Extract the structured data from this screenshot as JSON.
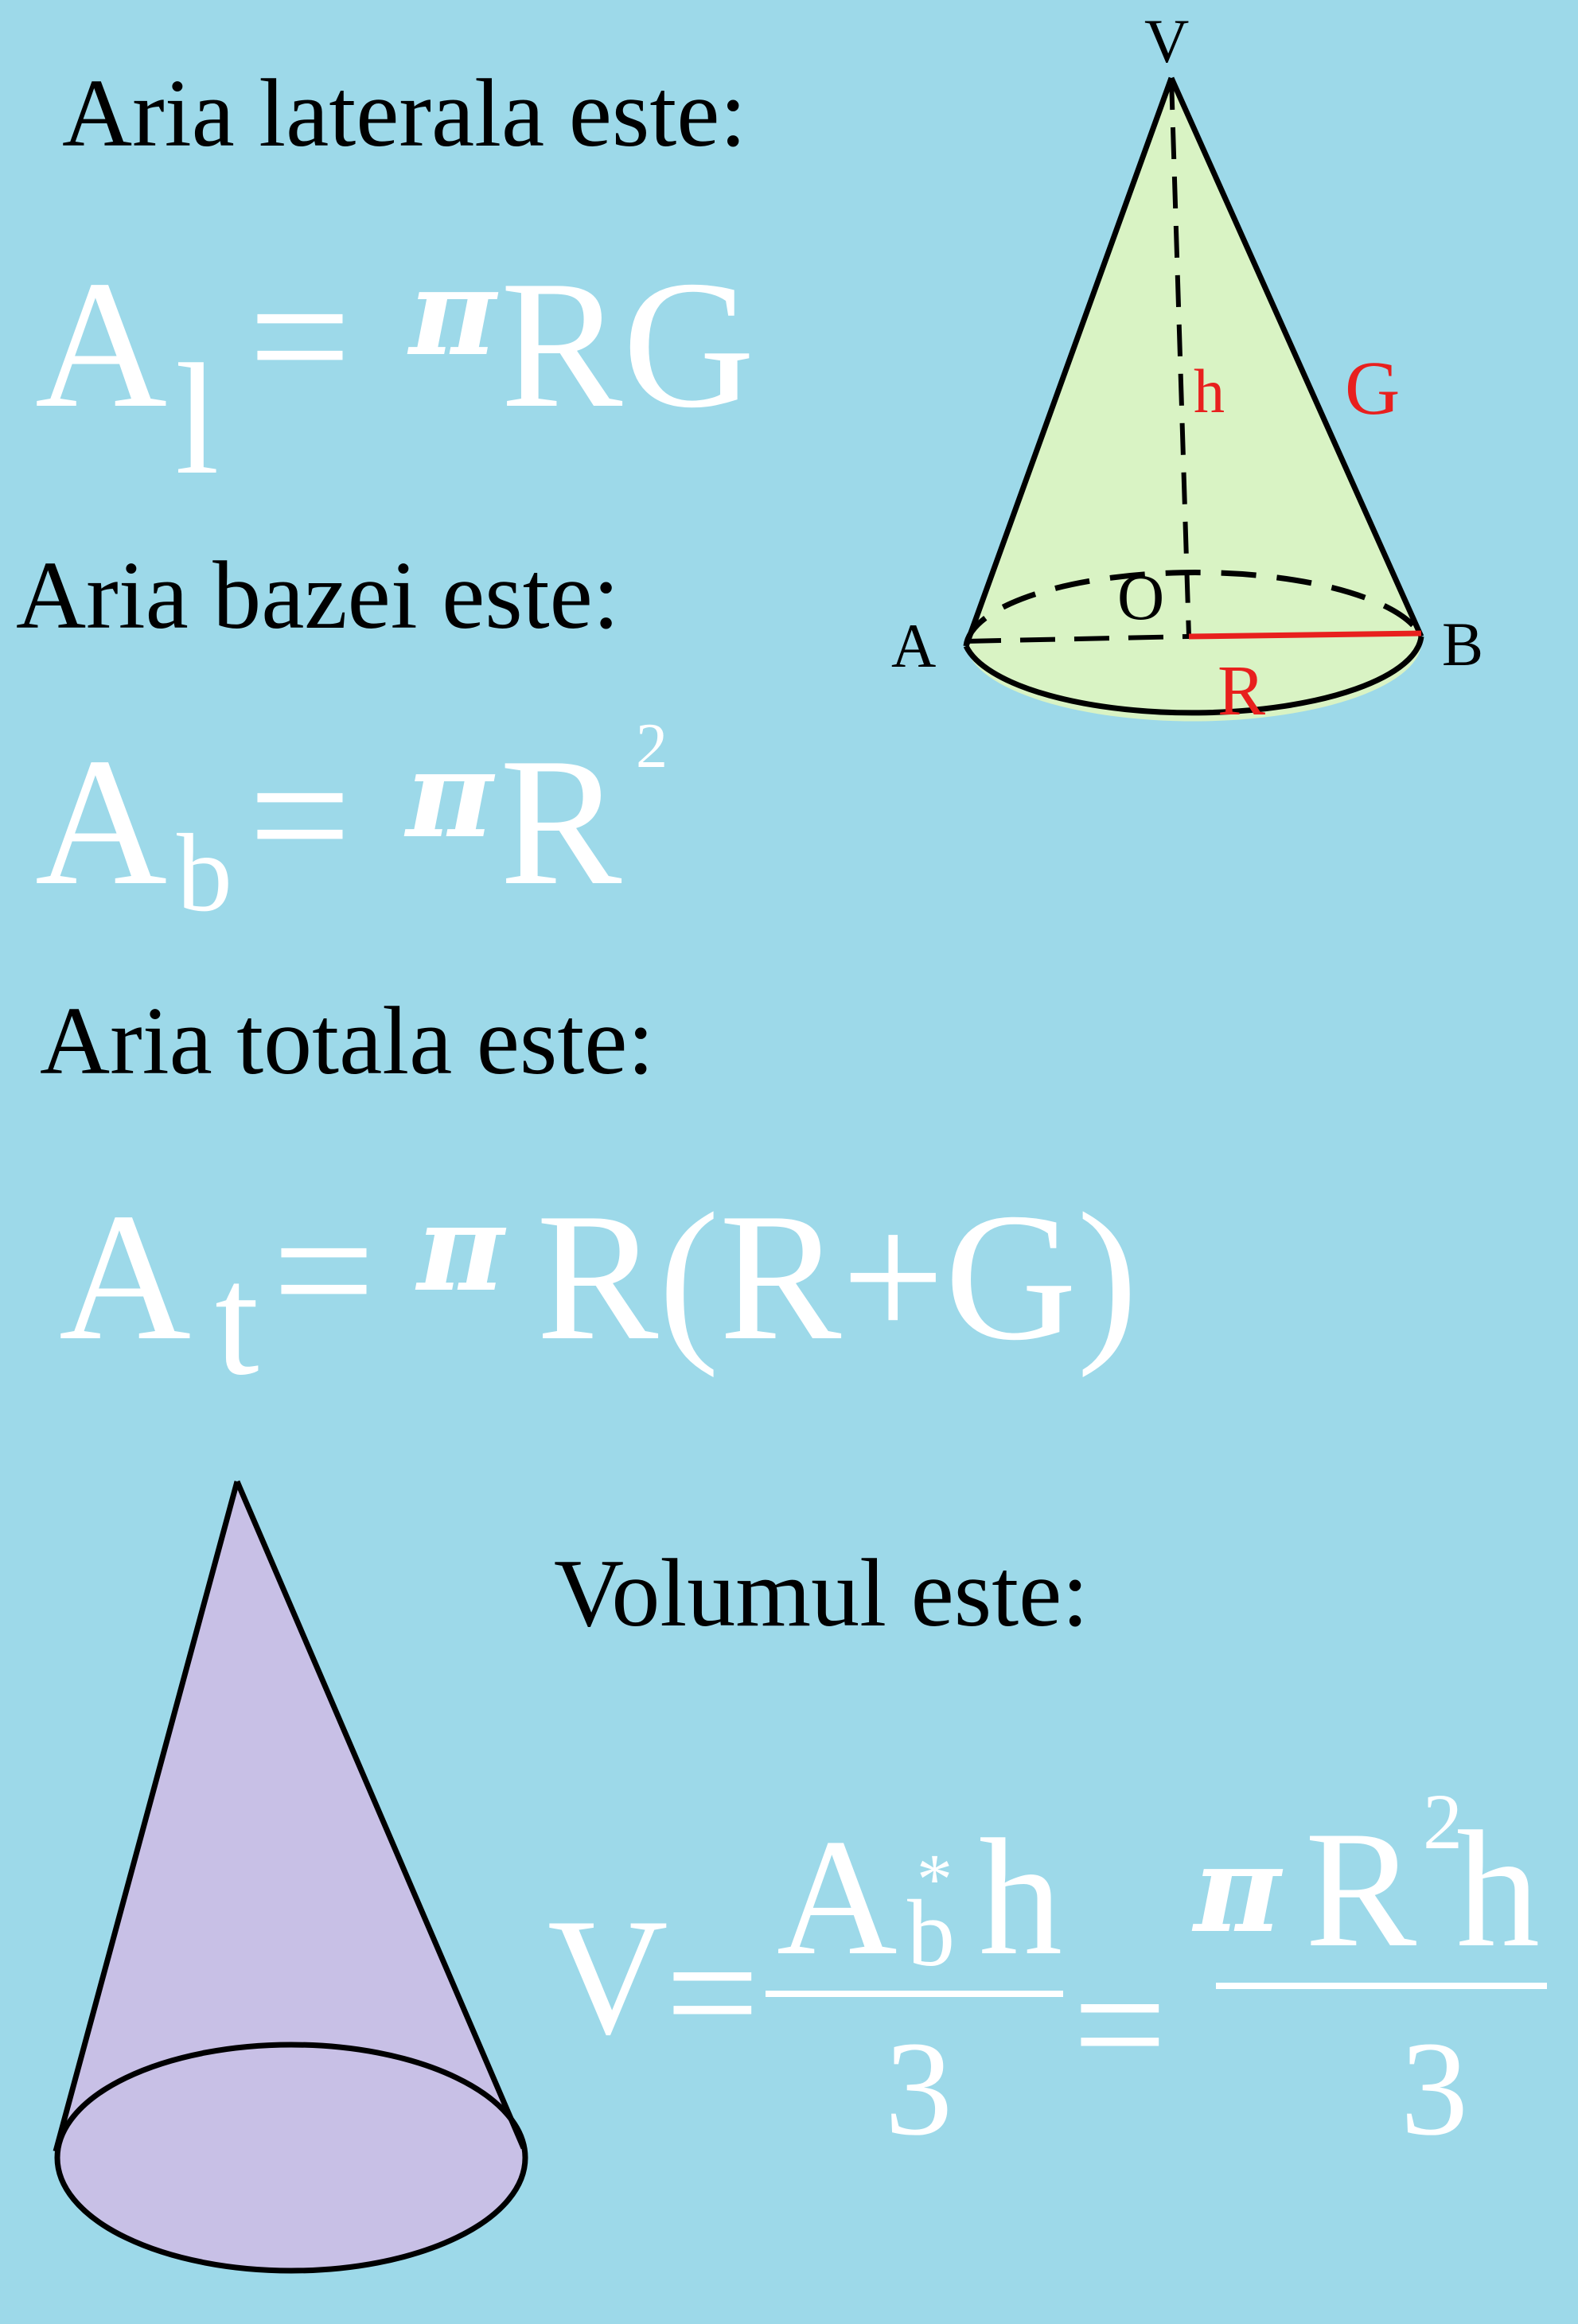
{
  "headings": {
    "lateral": "Aria laterala este:",
    "base": "Aria bazei este:",
    "total": "Aria totala este:",
    "volume": "Volumul este:"
  },
  "formulas": {
    "lateral": {
      "lhs": "A",
      "sub": "l",
      "eq": "=",
      "pi": "π",
      "rhs": "RG"
    },
    "base": {
      "lhs": "A",
      "sub": "b",
      "eq": "=",
      "pi": "π",
      "rhs": "R",
      "sup": "2"
    },
    "total": {
      "lhs": "A",
      "sub": "t",
      "eq": "=",
      "pi": "π",
      "rhs": "R(R+G)"
    },
    "volume": {
      "lhs": "V",
      "eq1": "=",
      "num1_a": "A",
      "num1_sub": "b",
      "num1_star": "*",
      "num1_h": "h",
      "den1": "3",
      "eq2": "=",
      "num2_pi": "π",
      "num2_r": "R",
      "num2_sup": "2",
      "num2_h": "h",
      "den2": "3"
    }
  },
  "cone_labels": {
    "apex": "V",
    "height": "h",
    "generatrix": "G",
    "center": "O",
    "left": "A",
    "right": "B",
    "radius": "R"
  },
  "colors": {
    "background": "#9dd9e9",
    "cone_green": "#d9f3c4",
    "cone_purple": "#c8c0e6",
    "label_red": "#e8201e",
    "formula_white": "#ffffff"
  }
}
